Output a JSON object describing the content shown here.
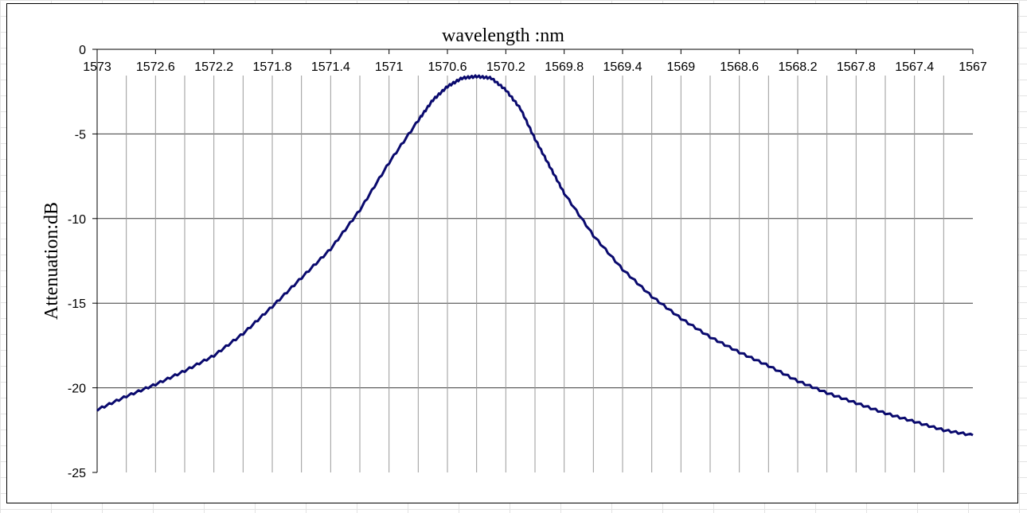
{
  "chart_data": {
    "type": "line",
    "title": "wavelength :nm",
    "xlabel": "wavelength :nm",
    "ylabel": "Attenuation:dB",
    "x_reversed": true,
    "xlim": [
      1567,
      1573
    ],
    "ylim": [
      -25,
      0
    ],
    "x_axis_position": "top",
    "grid": {
      "x_major": true,
      "y_major": true
    },
    "x_ticks": [
      1573,
      1572.6,
      1572.2,
      1571.8,
      1571.4,
      1571,
      1570.6,
      1570.2,
      1569.8,
      1569.4,
      1569,
      1568.6,
      1568.2,
      1567.8,
      1567.4,
      1567
    ],
    "y_ticks": [
      0,
      -5,
      -10,
      -15,
      -20,
      -25
    ],
    "line_color": "#0a0a6e",
    "series": [
      {
        "x": [
          1573,
          1572.8,
          1572.6,
          1572.4,
          1572.2,
          1572.0,
          1571.8,
          1571.6,
          1571.4,
          1571.2,
          1571.0,
          1570.8,
          1570.7,
          1570.6,
          1570.5,
          1570.4,
          1570.3,
          1570.2,
          1570.1,
          1570.0,
          1569.9,
          1569.8,
          1569.6,
          1569.4,
          1569.2,
          1569.0,
          1568.8,
          1568.6,
          1568.4,
          1568.2,
          1568.0,
          1567.8,
          1567.6,
          1567.4,
          1567.2,
          1567.0
        ],
        "values": [
          -21.3,
          -20.5,
          -19.8,
          -19.0,
          -18.1,
          -16.8,
          -15.2,
          -13.5,
          -11.8,
          -9.5,
          -6.7,
          -4.2,
          -3.0,
          -2.2,
          -1.7,
          -1.6,
          -1.7,
          -2.4,
          -3.5,
          -5.3,
          -6.9,
          -8.5,
          -11.0,
          -13.0,
          -14.6,
          -15.9,
          -17.0,
          -17.9,
          -18.7,
          -19.6,
          -20.3,
          -20.9,
          -21.5,
          -22.0,
          -22.5,
          -22.8
        ]
      }
    ]
  }
}
